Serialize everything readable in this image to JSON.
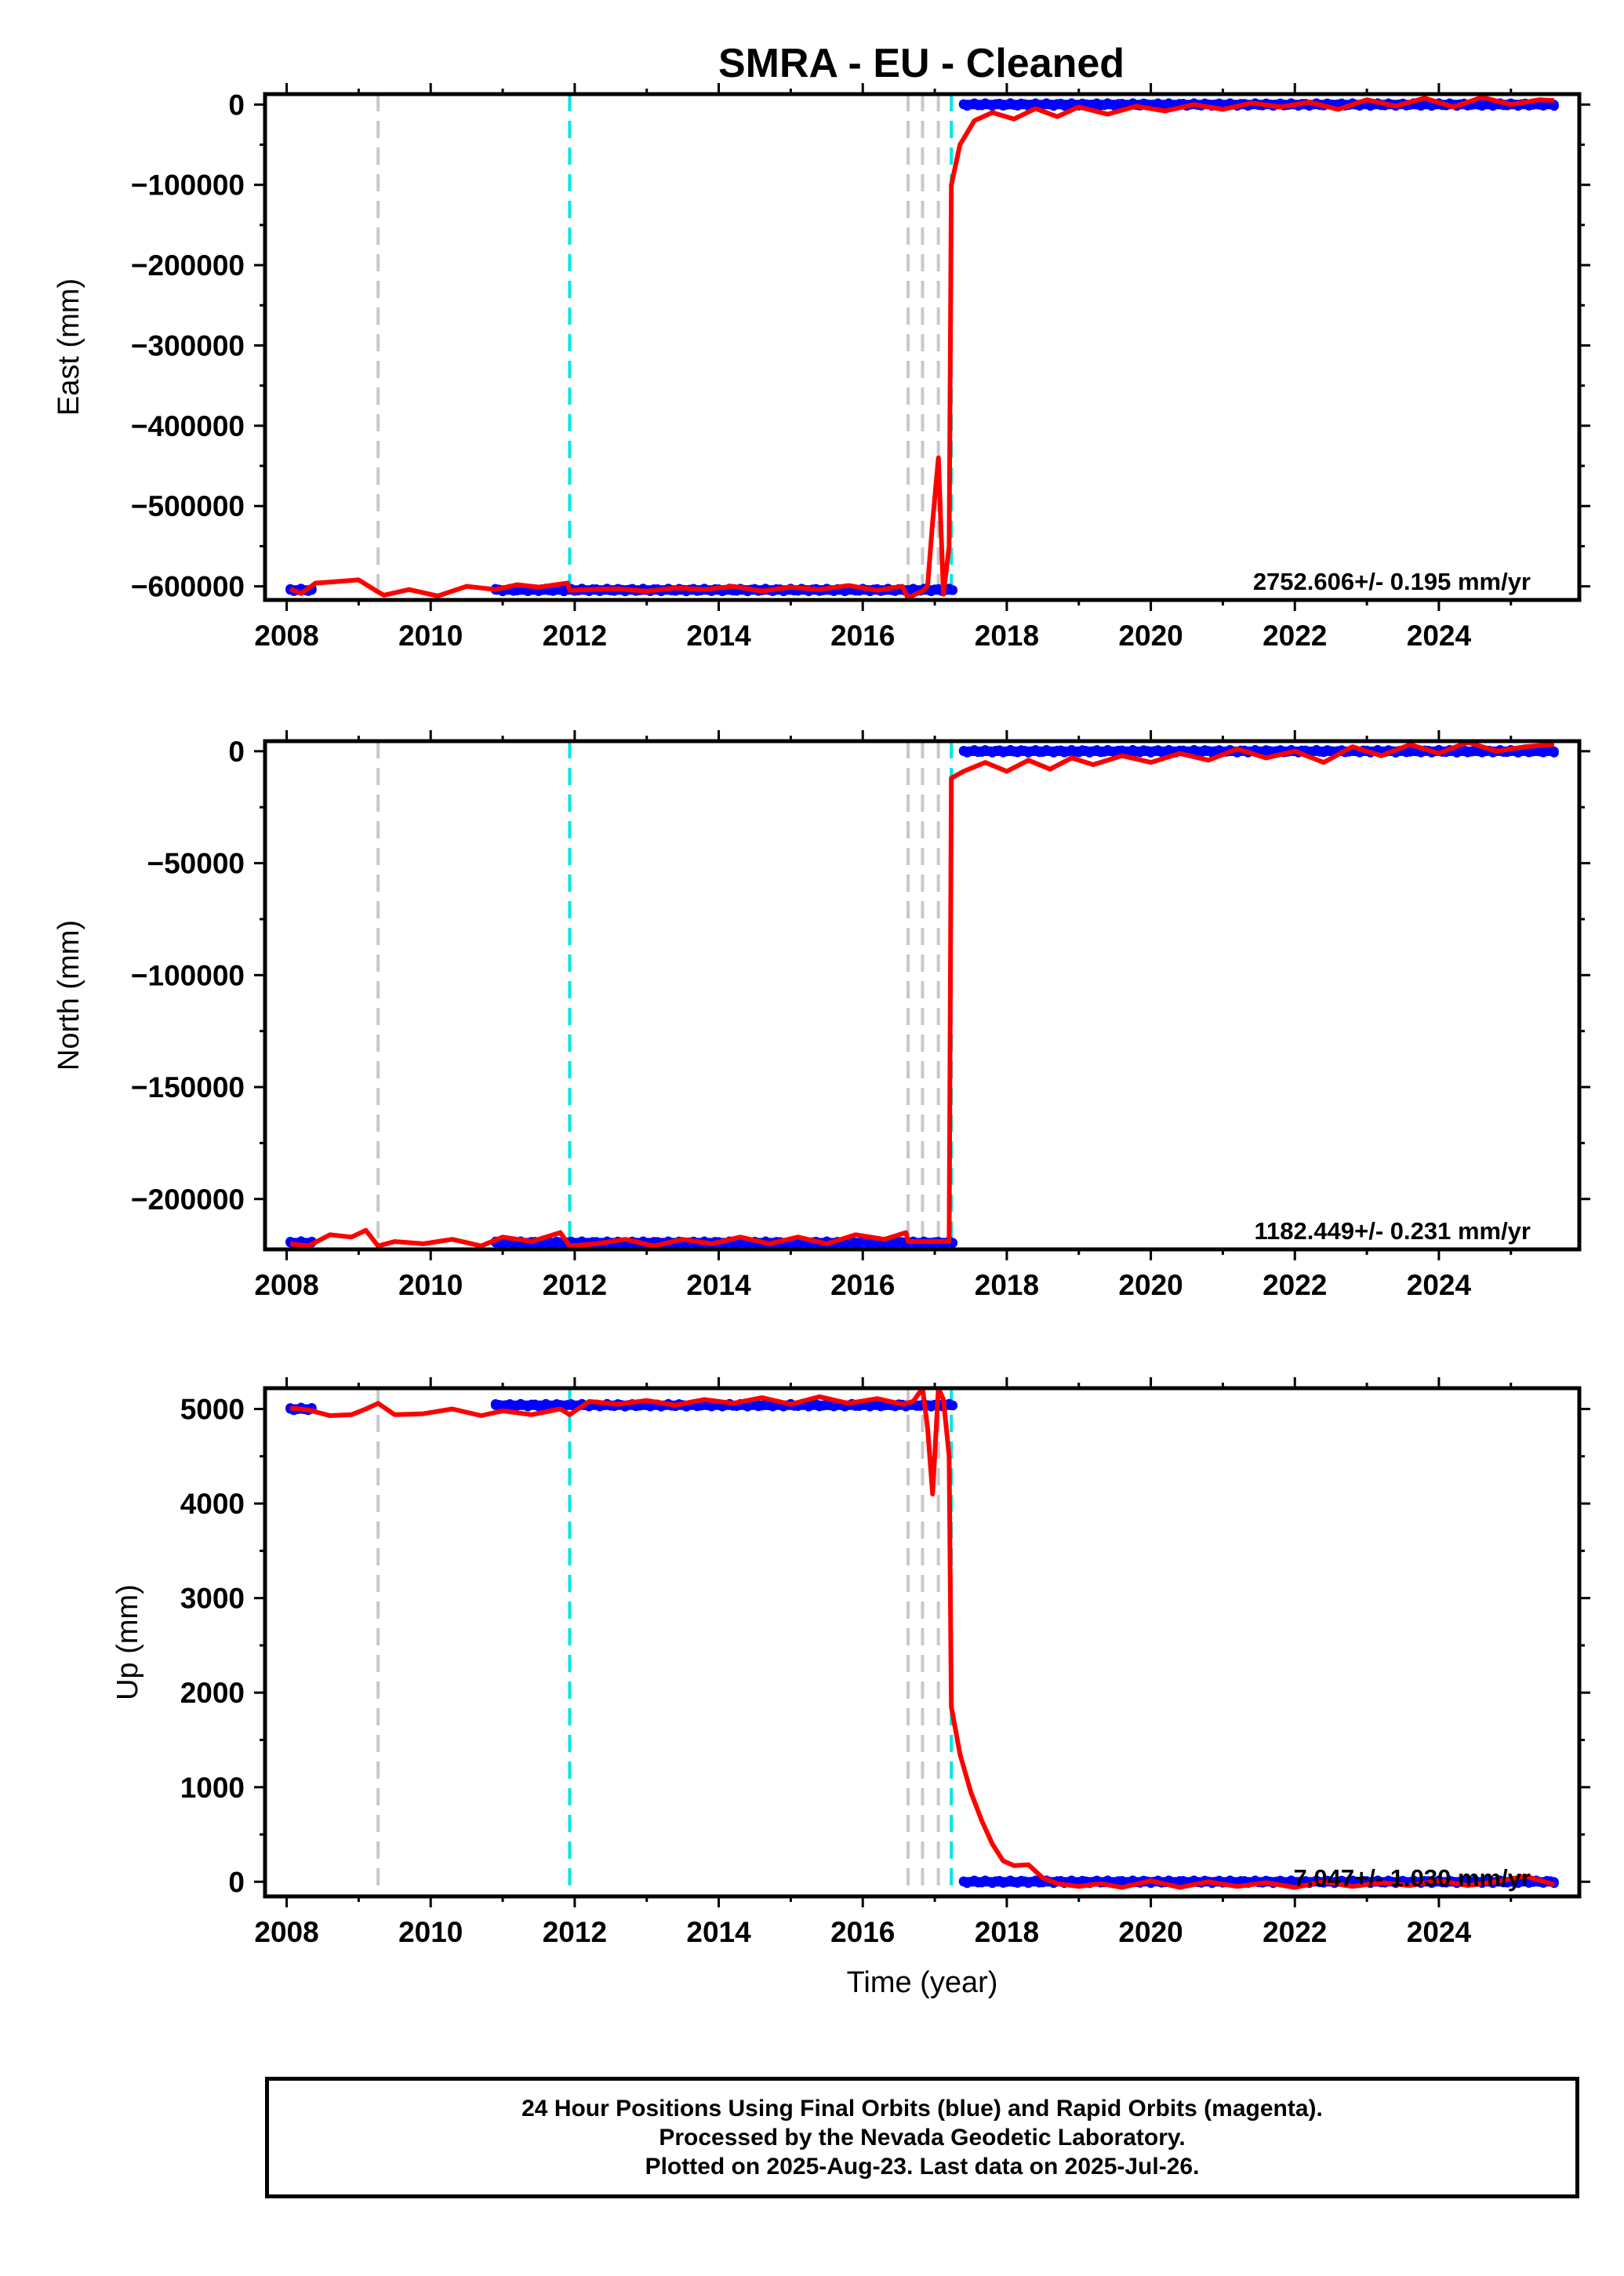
{
  "title": "SMRA  - EU - Cleaned",
  "colors": {
    "final_orbits": "#0000ff",
    "model": "#ff0000",
    "equipment_change": "#c8c8c8",
    "earthquake": "#00e5e5",
    "frame": "#000000"
  },
  "x_axis": {
    "label": "Time (year)",
    "range": [
      2007.7,
      2025.95
    ],
    "ticks": [
      2008,
      2010,
      2012,
      2014,
      2016,
      2018,
      2020,
      2022,
      2024
    ],
    "tick_labels": [
      "2008",
      "2010",
      "2012",
      "2014",
      "2016",
      "2018",
      "2020",
      "2022",
      "2024"
    ]
  },
  "event_lines": {
    "gray": [
      2009.27,
      2016.63,
      2016.83,
      2017.05
    ],
    "cyan": [
      2011.93,
      2017.23
    ]
  },
  "chart_data": [
    {
      "type": "scatter",
      "id": "east",
      "ylabel": "East (mm)",
      "ylim": [
        -617000,
        13000
      ],
      "yticks": [
        0,
        -100000,
        -200000,
        -300000,
        -400000,
        -500000,
        -600000
      ],
      "ytick_labels": [
        "0",
        "−100000",
        "−200000",
        "−300000",
        "−400000",
        "−500000",
        "−600000"
      ],
      "rate_label": "2752.606+/- 0.195 mm/yr",
      "blue_segments": [
        {
          "x": [
            2008.05,
            2008.35
          ],
          "y": -604500
        },
        {
          "x": [
            2010.9,
            2017.25
          ],
          "y": -604500
        },
        {
          "x": [
            2017.4,
            2025.6
          ],
          "y": 0
        }
      ],
      "model_line": {
        "x": [
          2008.05,
          2008.2,
          2008.4,
          2008.7,
          2009.0,
          2009.27,
          2009.35,
          2009.7,
          2010.1,
          2010.5,
          2010.9,
          2011.2,
          2011.5,
          2011.9,
          2011.93,
          2012.2,
          2012.6,
          2013.0,
          2013.4,
          2013.8,
          2014.2,
          2014.6,
          2015.0,
          2015.4,
          2015.8,
          2016.2,
          2016.55,
          2016.63,
          2016.73,
          2016.83,
          2016.9,
          2016.97,
          2017.05,
          2017.12,
          2017.2,
          2017.23,
          2017.35,
          2017.55,
          2017.8,
          2018.1,
          2018.4,
          2018.7,
          2019.0,
          2019.4,
          2019.8,
          2020.2,
          2020.6,
          2021.0,
          2021.4,
          2021.8,
          2022.2,
          2022.6,
          2023.0,
          2023.4,
          2023.8,
          2024.2,
          2024.6,
          2025.0,
          2025.4,
          2025.6
        ],
        "y": [
          -603000,
          -609000,
          -596000,
          -594000,
          -592000,
          -607000,
          -611000,
          -604000,
          -612000,
          -600000,
          -604000,
          -598000,
          -601000,
          -596000,
          -605000,
          -604000,
          -603000,
          -606000,
          -602000,
          -604000,
          -600000,
          -606000,
          -601000,
          -604000,
          -599000,
          -605000,
          -600000,
          -615000,
          -610000,
          -606000,
          -600000,
          -520000,
          -440000,
          -610000,
          -550000,
          -100000,
          -50000,
          -20000,
          -10000,
          -18000,
          -5000,
          -15000,
          -3000,
          -12000,
          -2000,
          -8000,
          0,
          -6000,
          2000,
          -3000,
          3000,
          -6000,
          6000,
          -2000,
          8000,
          -3000,
          9000,
          0,
          6000,
          5000
        ]
      }
    },
    {
      "type": "scatter",
      "id": "north",
      "ylabel": "North (mm)",
      "ylim": [
        -222500,
        4500
      ],
      "yticks": [
        0,
        -50000,
        -100000,
        -150000,
        -200000
      ],
      "ytick_labels": [
        "0",
        "−50000",
        "−100000",
        "−150000",
        "−200000"
      ],
      "rate_label": "1182.449+/- 0.231 mm/yr",
      "blue_segments": [
        {
          "x": [
            2008.05,
            2008.35
          ],
          "y": -219500
        },
        {
          "x": [
            2010.9,
            2017.25
          ],
          "y": -219500
        },
        {
          "x": [
            2017.4,
            2025.6
          ],
          "y": 0
        }
      ],
      "model_line": {
        "x": [
          2008.05,
          2008.3,
          2008.6,
          2008.9,
          2009.1,
          2009.27,
          2009.5,
          2009.9,
          2010.3,
          2010.7,
          2011.0,
          2011.4,
          2011.8,
          2011.93,
          2012.3,
          2012.7,
          2013.1,
          2013.5,
          2013.9,
          2014.3,
          2014.7,
          2015.1,
          2015.5,
          2015.9,
          2016.3,
          2016.6,
          2016.63,
          2016.9,
          2017.05,
          2017.2,
          2017.23,
          2017.4,
          2017.7,
          2018.0,
          2018.3,
          2018.6,
          2018.9,
          2019.2,
          2019.6,
          2020.0,
          2020.4,
          2020.8,
          2021.2,
          2021.6,
          2022.0,
          2022.4,
          2022.8,
          2023.2,
          2023.6,
          2024.0,
          2024.4,
          2024.8,
          2025.2,
          2025.6
        ],
        "y": [
          -220000,
          -221000,
          -216000,
          -217000,
          -214000,
          -221000,
          -219000,
          -220000,
          -218000,
          -221000,
          -217000,
          -219000,
          -215000,
          -221000,
          -220000,
          -218000,
          -221000,
          -218000,
          -220000,
          -217000,
          -220000,
          -217000,
          -220000,
          -216000,
          -218000,
          -215000,
          -219000,
          -219000,
          -219000,
          -219000,
          -12000,
          -9000,
          -5000,
          -9000,
          -4000,
          -8000,
          -3000,
          -6000,
          -2000,
          -5000,
          -1000,
          -4000,
          1000,
          -3000,
          0,
          -5000,
          2000,
          -2000,
          3000,
          -1000,
          4000,
          0,
          2000,
          3000
        ]
      }
    },
    {
      "type": "scatter",
      "id": "up",
      "ylabel": "Up (mm)",
      "ylim": [
        -155,
        5220
      ],
      "yticks": [
        5000,
        4000,
        3000,
        2000,
        1000,
        0
      ],
      "ytick_labels": [
        "5000",
        "4000",
        "3000",
        "2000",
        "1000",
        "0"
      ],
      "rate_label": "7.047+/- 1.030 mm/yr",
      "blue_segments": [
        {
          "x": [
            2008.05,
            2008.35
          ],
          "y": 5000
        },
        {
          "x": [
            2010.9,
            2017.25
          ],
          "y": 5040
        },
        {
          "x": [
            2017.4,
            2025.6
          ],
          "y": 0
        }
      ],
      "model_line": {
        "x": [
          2008.05,
          2008.3,
          2008.6,
          2008.9,
          2009.1,
          2009.27,
          2009.5,
          2009.9,
          2010.3,
          2010.7,
          2011.0,
          2011.4,
          2011.8,
          2011.93,
          2012.2,
          2012.6,
          2013.0,
          2013.4,
          2013.8,
          2014.2,
          2014.6,
          2015.0,
          2015.4,
          2015.8,
          2016.2,
          2016.55,
          2016.7,
          2016.83,
          2016.9,
          2016.97,
          2017.05,
          2017.12,
          2017.2,
          2017.23,
          2017.35,
          2017.5,
          2017.65,
          2017.8,
          2017.95,
          2018.1,
          2018.3,
          2018.5,
          2018.7,
          2019.0,
          2019.3,
          2019.6,
          2020.0,
          2020.4,
          2020.8,
          2021.2,
          2021.6,
          2022.0,
          2022.4,
          2022.8,
          2023.2,
          2023.6,
          2024.0,
          2024.4,
          2024.8,
          2025.2,
          2025.6
        ],
        "y": [
          5010,
          4990,
          4930,
          4940,
          5000,
          5060,
          4940,
          4950,
          5000,
          4930,
          4980,
          4940,
          5000,
          4940,
          5080,
          5050,
          5090,
          5040,
          5100,
          5060,
          5120,
          5050,
          5130,
          5060,
          5110,
          5050,
          5080,
          5220,
          4800,
          4100,
          5220,
          5100,
          4500,
          1850,
          1350,
          950,
          650,
          400,
          220,
          170,
          180,
          40,
          -20,
          -50,
          -20,
          -60,
          10,
          -60,
          0,
          -50,
          -10,
          -60,
          0,
          -50,
          -10,
          -40,
          10,
          -40,
          0,
          60,
          -30
        ]
      }
    }
  ],
  "footer": {
    "line1": "24 Hour Positions Using Final Orbits (blue) and Rapid Orbits (magenta).",
    "line2": "Processed by the Nevada Geodetic Laboratory.",
    "line3": "Plotted on 2025-Aug-23. Last data on 2025-Jul-26."
  }
}
